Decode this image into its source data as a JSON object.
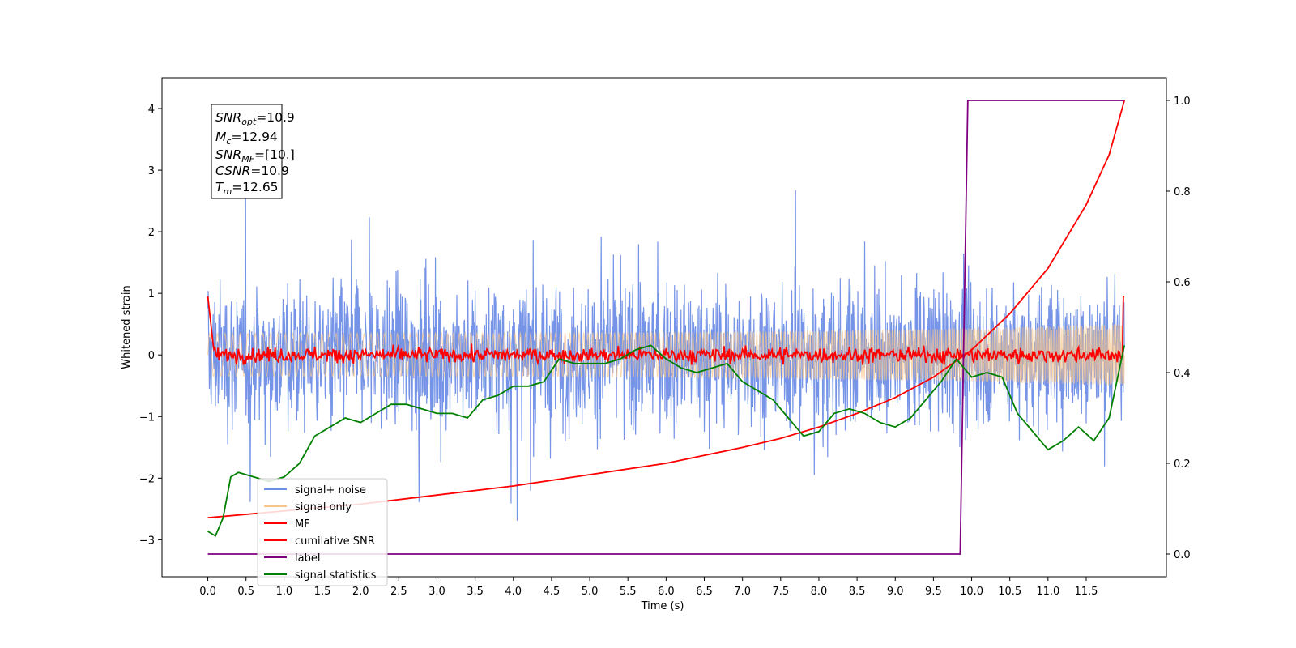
{
  "chart_data": {
    "type": "line",
    "xlabel": "Time (s)",
    "ylabel_left": "Whitened strain",
    "xlim": [
      -0.6,
      12.55
    ],
    "ylim_left": [
      -3.6,
      4.5
    ],
    "ylim_right": [
      -0.05,
      1.05
    ],
    "x_ticks": [
      "0.0",
      "0.5",
      "1.0",
      "1.5",
      "2.0",
      "2.5",
      "3.0",
      "3.5",
      "4.0",
      "4.5",
      "5.0",
      "5.5",
      "6.0",
      "6.5",
      "7.0",
      "7.5",
      "8.0",
      "8.5",
      "9.0",
      "9.5",
      "10.0",
      "10.5",
      "11.0",
      "11.5"
    ],
    "y_ticks_left": [
      "−3",
      "−2",
      "−1",
      "0",
      "1",
      "2",
      "3",
      "4"
    ],
    "y_ticks_right": [
      "0.0",
      "0.2",
      "0.4",
      "0.6",
      "0.8",
      "1.0"
    ],
    "legend": {
      "placement": "lower-left",
      "entries": [
        "signal+ noise",
        "signal only",
        "MF",
        "cumilative SNR",
        "label",
        "signal statistics"
      ]
    },
    "colors": {
      "signal_noise": "#6f8ee6",
      "signal_only": "#f7c48a",
      "mf": "#ff0000",
      "cumulative_snr": "#ff0000",
      "label": "#800080",
      "signal_statistics": "#008000"
    },
    "annotation": {
      "snr_opt": {
        "sym": "SNR",
        "sub": "opt",
        "val": "=10.9"
      },
      "mc": {
        "sym": "M",
        "sub": "c",
        "val": "=12.94"
      },
      "snr_mf": {
        "sym": "SNR",
        "sub": "MF",
        "val": "=[10.]"
      },
      "csnr": {
        "sym": "CSNR",
        "sub": "",
        "val": "=10.9"
      },
      "tm": {
        "sym": "T",
        "sub": "m",
        "val": "=12.65"
      }
    },
    "series": [
      {
        "name": "signal+ noise",
        "axis": "left",
        "description_kind": "noise",
        "x_range": [
          0,
          12.0
        ],
        "amplitude_std": 0.95,
        "spike_max": 4.15,
        "spike_min": -3.3
      },
      {
        "name": "signal only",
        "axis": "left",
        "kind": "chirp",
        "x_range": [
          0,
          12.0
        ],
        "amplitude_start": 0.35,
        "amplitude_end": 0.5
      },
      {
        "name": "MF",
        "axis": "left",
        "x_range": [
          0,
          12.0
        ],
        "points": [
          [
            0.0,
            0.95
          ],
          [
            0.05,
            0.6
          ],
          [
            0.08,
            0.0
          ],
          [
            0.15,
            0.05
          ],
          [
            12.0,
            0.0
          ],
          [
            12.0,
            0.95
          ]
        ]
      },
      {
        "name": "cumilative SNR",
        "axis": "right",
        "x": [
          0.0,
          1.0,
          2.0,
          3.0,
          4.0,
          5.0,
          6.0,
          7.0,
          7.5,
          8.0,
          8.5,
          9.0,
          9.5,
          10.0,
          10.5,
          11.0,
          11.5,
          11.8,
          12.0
        ],
        "y": [
          0.08,
          0.095,
          0.11,
          0.13,
          0.15,
          0.175,
          0.2,
          0.235,
          0.255,
          0.28,
          0.31,
          0.345,
          0.39,
          0.45,
          0.53,
          0.63,
          0.77,
          0.88,
          1.0
        ]
      },
      {
        "name": "label",
        "axis": "right",
        "x": [
          0.0,
          9.85,
          9.95,
          12.0
        ],
        "y": [
          0.0,
          0.0,
          1.0,
          1.0
        ]
      },
      {
        "name": "signal statistics",
        "axis": "right",
        "x": [
          0.0,
          0.1,
          0.2,
          0.3,
          0.4,
          0.6,
          0.8,
          1.0,
          1.2,
          1.4,
          1.6,
          1.8,
          2.0,
          2.2,
          2.4,
          2.6,
          2.8,
          3.0,
          3.2,
          3.4,
          3.6,
          3.8,
          4.0,
          4.2,
          4.4,
          4.6,
          4.8,
          5.0,
          5.2,
          5.4,
          5.6,
          5.8,
          6.0,
          6.2,
          6.4,
          6.6,
          6.8,
          7.0,
          7.2,
          7.4,
          7.6,
          7.8,
          8.0,
          8.2,
          8.4,
          8.6,
          8.8,
          9.0,
          9.2,
          9.4,
          9.6,
          9.8,
          10.0,
          10.2,
          10.4,
          10.6,
          10.8,
          11.0,
          11.2,
          11.4,
          11.6,
          11.8,
          12.0
        ],
        "y": [
          0.05,
          0.04,
          0.08,
          0.17,
          0.18,
          0.17,
          0.16,
          0.17,
          0.2,
          0.26,
          0.28,
          0.3,
          0.29,
          0.31,
          0.33,
          0.33,
          0.32,
          0.31,
          0.31,
          0.3,
          0.34,
          0.35,
          0.37,
          0.37,
          0.38,
          0.43,
          0.42,
          0.42,
          0.42,
          0.43,
          0.45,
          0.46,
          0.43,
          0.41,
          0.4,
          0.41,
          0.42,
          0.38,
          0.36,
          0.34,
          0.3,
          0.26,
          0.27,
          0.31,
          0.32,
          0.31,
          0.29,
          0.28,
          0.3,
          0.34,
          0.38,
          0.43,
          0.39,
          0.4,
          0.39,
          0.31,
          0.27,
          0.23,
          0.25,
          0.28,
          0.25,
          0.3,
          0.46
        ]
      }
    ]
  }
}
